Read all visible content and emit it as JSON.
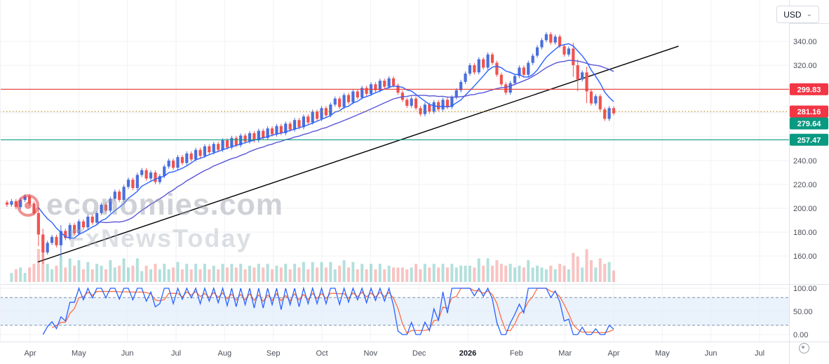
{
  "toolbar": {
    "currency_label": "USD",
    "chevron_glyph": "⌄"
  },
  "watermark": {
    "line1": "economies.com",
    "line2": "FxNewsToday"
  },
  "chart_data": {
    "type": "candlestick",
    "title": "",
    "x_labels": [
      "Apr",
      "May",
      "Jun",
      "Jul",
      "Aug",
      "Sep",
      "Oct",
      "Nov",
      "Dec",
      "2026",
      "Feb",
      "Mar",
      "Apr",
      "May",
      "Jun",
      "Jul"
    ],
    "bold_x_label": "2026",
    "price_axis": {
      "visible_ticks": [
        340,
        320,
        240,
        220,
        200,
        180,
        160
      ],
      "min": 150,
      "max": 352
    },
    "closes": [
      203,
      206,
      201,
      207,
      210,
      204,
      196,
      178,
      163,
      171,
      176,
      169,
      181,
      175,
      186,
      179,
      189,
      184,
      193,
      188,
      196,
      203,
      198,
      208,
      214,
      207,
      218,
      224,
      217,
      228,
      232,
      225,
      230,
      222,
      227,
      235,
      240,
      234,
      243,
      238,
      246,
      241,
      249,
      244,
      252,
      247,
      254,
      249,
      257,
      251,
      259,
      253,
      261,
      256,
      263,
      257,
      265,
      259,
      267,
      262,
      269,
      263,
      271,
      266,
      274,
      268,
      277,
      272,
      281,
      275,
      284,
      278,
      287,
      292,
      285,
      295,
      289,
      298,
      293,
      301,
      296,
      304,
      299,
      307,
      302,
      309,
      303,
      297,
      291,
      286,
      292,
      284,
      279,
      287,
      281,
      289,
      283,
      291,
      285,
      293,
      299,
      306,
      313,
      320,
      314,
      325,
      318,
      329,
      322,
      312,
      304,
      297,
      305,
      311,
      318,
      312,
      322,
      328,
      335,
      341,
      346,
      339,
      344,
      336,
      329,
      334,
      320,
      308,
      314,
      298,
      288,
      294,
      283,
      275,
      284,
      279.64
    ],
    "last_price": 279.64,
    "price_lines": [
      {
        "value": 299.83,
        "line_color": "#e53935",
        "style": "solid",
        "badge_color": "#f23645"
      },
      {
        "value": 281.16,
        "line_color": "#b8860b",
        "style": "dotted",
        "badge_color": "#f23645"
      },
      {
        "value": 257.47,
        "line_color": "#089981",
        "style": "solid",
        "badge_color": "#089981"
      }
    ],
    "last_price_badge_color": "#089981",
    "trendline": {
      "t1": 0.048,
      "p1": 155,
      "t2": 0.86,
      "p2": 336,
      "color": "#000000"
    },
    "overlays": [
      {
        "name": "ma-fast",
        "period": 8,
        "color": "#2962ff"
      },
      {
        "name": "ma-slow",
        "period": 21,
        "color": "#5a56d6"
      }
    ],
    "indicator": {
      "name": "stochastic",
      "k_color": "#2962ff",
      "d_color": "#ff7043",
      "band": [
        20,
        80
      ],
      "band_fill": "#e3eefb",
      "band_border": "#7c93ad",
      "ticks": [
        100,
        50,
        0
      ]
    },
    "colors": {
      "up": "#4a6fdc",
      "down": "#ef5350",
      "vol_up": "#26a69a",
      "vol_down": "#ef5350",
      "grid": "#f0f2f6",
      "separator": "#e0e3eb",
      "axis_text": "#4a4f59"
    }
  }
}
